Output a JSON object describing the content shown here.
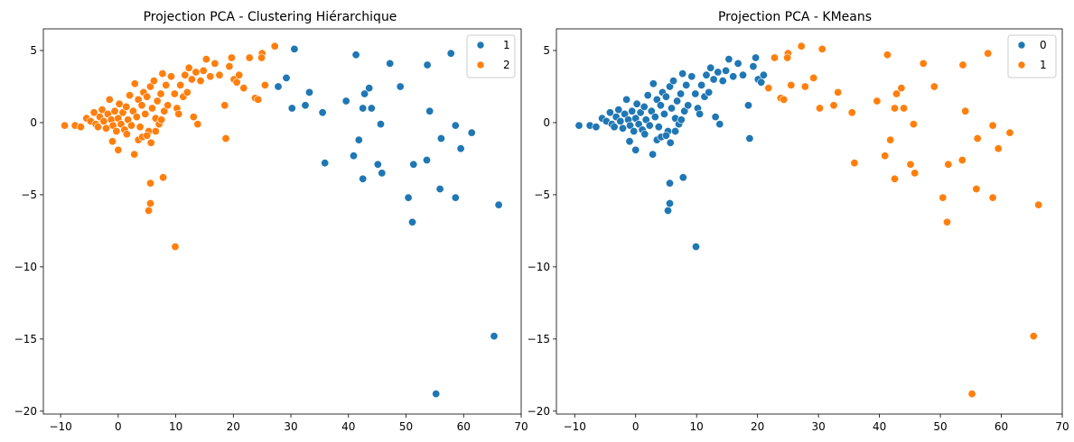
{
  "colors": {
    "blue": "#1f77b4",
    "orange": "#ff7f0e"
  },
  "chart_data": [
    {
      "type": "scatter",
      "title": "Projection PCA - Clustering Hiérarchique",
      "xlabel": "",
      "ylabel": "",
      "xlim": [
        -13,
        70
      ],
      "ylim": [
        -20.2,
        6.5
      ],
      "xticks": [
        -10,
        0,
        10,
        20,
        30,
        40,
        50,
        60,
        70
      ],
      "yticks": [
        5,
        0,
        -5,
        -10,
        -15,
        -20
      ],
      "grid": false,
      "legend": {
        "position": "top-right",
        "entries": [
          "1",
          "2"
        ]
      },
      "series": [
        {
          "name": "1",
          "color": "#1f77b4",
          "points": [
            [
              30.6,
              5.1
            ],
            [
              41.3,
              4.7
            ],
            [
              57.8,
              4.8
            ],
            [
              53.7,
              4.0
            ],
            [
              47.2,
              4.1
            ],
            [
              29.2,
              3.1
            ],
            [
              27.8,
              2.5
            ],
            [
              33.2,
              2.1
            ],
            [
              43.6,
              2.4
            ],
            [
              42.8,
              2.0
            ],
            [
              49.0,
              2.5
            ],
            [
              39.6,
              1.5
            ],
            [
              32.5,
              1.2
            ],
            [
              30.2,
              1.0
            ],
            [
              42.5,
              1.0
            ],
            [
              44.0,
              1.0
            ],
            [
              35.5,
              0.7
            ],
            [
              54.1,
              0.8
            ],
            [
              45.6,
              -0.1
            ],
            [
              58.6,
              -0.2
            ],
            [
              61.4,
              -0.7
            ],
            [
              56.1,
              -1.1
            ],
            [
              59.5,
              -1.8
            ],
            [
              41.8,
              -1.2
            ],
            [
              40.9,
              -2.3
            ],
            [
              53.6,
              -2.6
            ],
            [
              51.3,
              -2.9
            ],
            [
              35.9,
              -2.8
            ],
            [
              45.1,
              -2.9
            ],
            [
              45.8,
              -3.5
            ],
            [
              42.5,
              -3.9
            ],
            [
              55.9,
              -4.6
            ],
            [
              50.4,
              -5.2
            ],
            [
              58.6,
              -5.2
            ],
            [
              66.1,
              -5.7
            ],
            [
              51.1,
              -6.9
            ],
            [
              65.3,
              -14.8
            ],
            [
              55.2,
              -18.8
            ]
          ]
        },
        {
          "name": "2",
          "color": "#ff7f0e",
          "points": [
            [
              -9.3,
              -0.2
            ],
            [
              -7.5,
              -0.2
            ],
            [
              -6.5,
              -0.3
            ],
            [
              -5.5,
              0.3
            ],
            [
              -4.8,
              0.1
            ],
            [
              -4.2,
              0.7
            ],
            [
              -3.9,
              -0.1
            ],
            [
              -3.5,
              -0.3
            ],
            [
              -3.2,
              0.4
            ],
            [
              -2.8,
              0.9
            ],
            [
              -2.5,
              0.1
            ],
            [
              -2.1,
              -0.4
            ],
            [
              -1.8,
              0.6
            ],
            [
              -1.5,
              1.6
            ],
            [
              -1.2,
              0.2
            ],
            [
              -0.9,
              -0.2
            ],
            [
              -0.6,
              0.8
            ],
            [
              -0.3,
              -0.6
            ],
            [
              0.0,
              0.3
            ],
            [
              0.2,
              1.3
            ],
            [
              0.5,
              -0.1
            ],
            [
              0.8,
              0.7
            ],
            [
              1.1,
              -0.5
            ],
            [
              1.4,
              1.1
            ],
            [
              1.7,
              0.2
            ],
            [
              2.0,
              1.9
            ],
            [
              2.3,
              -0.2
            ],
            [
              2.6,
              0.8
            ],
            [
              2.9,
              2.7
            ],
            [
              3.2,
              0.4
            ],
            [
              3.5,
              1.6
            ],
            [
              3.8,
              -0.3
            ],
            [
              4.1,
              1.2
            ],
            [
              4.4,
              2.1
            ],
            [
              4.7,
              0.6
            ],
            [
              5.0,
              1.8
            ],
            [
              5.3,
              -0.6
            ],
            [
              5.6,
              2.5
            ],
            [
              5.9,
              1.0
            ],
            [
              6.2,
              2.9
            ],
            [
              6.5,
              0.3
            ],
            [
              6.8,
              1.5
            ],
            [
              7.1,
              -0.1
            ],
            [
              7.4,
              2.0
            ],
            [
              7.7,
              3.4
            ],
            [
              8.0,
              0.8
            ],
            [
              8.3,
              2.6
            ],
            [
              8.6,
              1.2
            ],
            [
              -1.0,
              -1.3
            ],
            [
              0.0,
              -1.9
            ],
            [
              1.5,
              -0.8
            ],
            [
              2.8,
              -2.2
            ],
            [
              3.5,
              -1.2
            ],
            [
              4.2,
              -1.0
            ],
            [
              5.0,
              -0.9
            ],
            [
              5.7,
              -1.4
            ],
            [
              6.5,
              -0.6
            ],
            [
              7.5,
              0.2
            ],
            [
              9.2,
              3.2
            ],
            [
              9.8,
              2.0
            ],
            [
              10.2,
              1.0
            ],
            [
              10.5,
              0.6
            ],
            [
              10.8,
              2.6
            ],
            [
              11.3,
              1.8
            ],
            [
              11.6,
              3.3
            ],
            [
              12.0,
              2.1
            ],
            [
              12.3,
              3.8
            ],
            [
              12.8,
              3.0
            ],
            [
              13.1,
              0.4
            ],
            [
              13.5,
              3.5
            ],
            [
              13.8,
              -0.1
            ],
            [
              14.3,
              2.9
            ],
            [
              14.8,
              3.6
            ],
            [
              15.3,
              4.4
            ],
            [
              16.0,
              3.2
            ],
            [
              16.8,
              4.1
            ],
            [
              17.6,
              3.3
            ],
            [
              18.5,
              1.2
            ],
            [
              18.7,
              -1.1
            ],
            [
              19.3,
              3.9
            ],
            [
              19.7,
              4.5
            ],
            [
              20.1,
              3.0
            ],
            [
              20.6,
              2.8
            ],
            [
              21.0,
              3.3
            ],
            [
              21.8,
              2.4
            ],
            [
              22.8,
              4.5
            ],
            [
              23.8,
              1.7
            ],
            [
              24.3,
              1.6
            ],
            [
              25.0,
              4.8
            ],
            [
              25.5,
              2.6
            ],
            [
              27.2,
              5.3
            ],
            [
              24.9,
              4.5
            ],
            [
              5.6,
              -4.2
            ],
            [
              7.8,
              -3.8
            ],
            [
              5.6,
              -5.6
            ],
            [
              5.3,
              -6.1
            ],
            [
              9.9,
              -8.6
            ]
          ]
        }
      ]
    },
    {
      "type": "scatter",
      "title": "Projection PCA - KMeans",
      "xlabel": "",
      "ylabel": "",
      "xlim": [
        -13,
        70
      ],
      "ylim": [
        -20.2,
        6.5
      ],
      "xticks": [
        -10,
        0,
        10,
        20,
        30,
        40,
        50,
        60,
        70
      ],
      "yticks": [
        5,
        0,
        -5,
        -10,
        -15,
        -20
      ],
      "grid": false,
      "legend": {
        "position": "top-right",
        "entries": [
          "0",
          "1"
        ]
      },
      "series": [
        {
          "name": "0",
          "color": "#1f77b4",
          "points": [
            [
              -9.3,
              -0.2
            ],
            [
              -7.5,
              -0.2
            ],
            [
              -6.5,
              -0.3
            ],
            [
              -5.5,
              0.3
            ],
            [
              -4.8,
              0.1
            ],
            [
              -4.2,
              0.7
            ],
            [
              -3.9,
              -0.1
            ],
            [
              -3.5,
              -0.3
            ],
            [
              -3.2,
              0.4
            ],
            [
              -2.8,
              0.9
            ],
            [
              -2.5,
              0.1
            ],
            [
              -2.1,
              -0.4
            ],
            [
              -1.8,
              0.6
            ],
            [
              -1.5,
              1.6
            ],
            [
              -1.2,
              0.2
            ],
            [
              -0.9,
              -0.2
            ],
            [
              -0.6,
              0.8
            ],
            [
              -0.3,
              -0.6
            ],
            [
              0.0,
              0.3
            ],
            [
              0.2,
              1.3
            ],
            [
              0.5,
              -0.1
            ],
            [
              0.8,
              0.7
            ],
            [
              1.1,
              -0.5
            ],
            [
              1.4,
              1.1
            ],
            [
              1.7,
              0.2
            ],
            [
              2.0,
              1.9
            ],
            [
              2.3,
              -0.2
            ],
            [
              2.6,
              0.8
            ],
            [
              2.9,
              2.7
            ],
            [
              3.2,
              0.4
            ],
            [
              3.5,
              1.6
            ],
            [
              3.8,
              -0.3
            ],
            [
              4.1,
              1.2
            ],
            [
              4.4,
              2.1
            ],
            [
              4.7,
              0.6
            ],
            [
              5.0,
              1.8
            ],
            [
              5.3,
              -0.6
            ],
            [
              5.6,
              2.5
            ],
            [
              5.9,
              1.0
            ],
            [
              6.2,
              2.9
            ],
            [
              6.5,
              0.3
            ],
            [
              6.8,
              1.5
            ],
            [
              7.1,
              -0.1
            ],
            [
              7.4,
              2.0
            ],
            [
              7.7,
              3.4
            ],
            [
              8.0,
              0.8
            ],
            [
              8.3,
              2.6
            ],
            [
              8.6,
              1.2
            ],
            [
              -1.0,
              -1.3
            ],
            [
              0.0,
              -1.9
            ],
            [
              1.5,
              -0.8
            ],
            [
              2.8,
              -2.2
            ],
            [
              3.5,
              -1.2
            ],
            [
              4.2,
              -1.0
            ],
            [
              5.0,
              -0.9
            ],
            [
              5.7,
              -1.4
            ],
            [
              6.5,
              -0.6
            ],
            [
              7.5,
              0.2
            ],
            [
              9.2,
              3.2
            ],
            [
              9.8,
              2.0
            ],
            [
              10.2,
              1.0
            ],
            [
              10.5,
              0.6
            ],
            [
              10.8,
              2.6
            ],
            [
              11.3,
              1.8
            ],
            [
              11.6,
              3.3
            ],
            [
              12.0,
              2.1
            ],
            [
              12.3,
              3.8
            ],
            [
              12.8,
              3.0
            ],
            [
              13.1,
              0.4
            ],
            [
              13.5,
              3.5
            ],
            [
              13.8,
              -0.1
            ],
            [
              14.3,
              2.9
            ],
            [
              14.8,
              3.6
            ],
            [
              15.3,
              4.4
            ],
            [
              16.0,
              3.2
            ],
            [
              16.8,
              4.1
            ],
            [
              17.6,
              3.3
            ],
            [
              18.5,
              1.2
            ],
            [
              18.7,
              -1.1
            ],
            [
              19.3,
              3.9
            ],
            [
              19.7,
              4.5
            ],
            [
              20.1,
              3.0
            ],
            [
              20.6,
              2.8
            ],
            [
              21.0,
              3.3
            ],
            [
              5.6,
              -4.2
            ],
            [
              7.8,
              -3.8
            ],
            [
              5.6,
              -5.6
            ],
            [
              5.3,
              -6.1
            ],
            [
              9.9,
              -8.6
            ]
          ]
        },
        {
          "name": "1",
          "color": "#ff7f0e",
          "points": [
            [
              21.8,
              2.4
            ],
            [
              22.8,
              4.5
            ],
            [
              23.8,
              1.7
            ],
            [
              24.3,
              1.6
            ],
            [
              25.0,
              4.8
            ],
            [
              25.5,
              2.6
            ],
            [
              27.2,
              5.3
            ],
            [
              24.9,
              4.5
            ],
            [
              30.6,
              5.1
            ],
            [
              41.3,
              4.7
            ],
            [
              57.8,
              4.8
            ],
            [
              53.7,
              4.0
            ],
            [
              47.2,
              4.1
            ],
            [
              29.2,
              3.1
            ],
            [
              27.8,
              2.5
            ],
            [
              33.2,
              2.1
            ],
            [
              43.6,
              2.4
            ],
            [
              42.8,
              2.0
            ],
            [
              49.0,
              2.5
            ],
            [
              39.6,
              1.5
            ],
            [
              32.5,
              1.2
            ],
            [
              30.2,
              1.0
            ],
            [
              42.5,
              1.0
            ],
            [
              44.0,
              1.0
            ],
            [
              35.5,
              0.7
            ],
            [
              54.1,
              0.8
            ],
            [
              45.6,
              -0.1
            ],
            [
              58.6,
              -0.2
            ],
            [
              61.4,
              -0.7
            ],
            [
              56.1,
              -1.1
            ],
            [
              59.5,
              -1.8
            ],
            [
              41.8,
              -1.2
            ],
            [
              40.9,
              -2.3
            ],
            [
              53.6,
              -2.6
            ],
            [
              51.3,
              -2.9
            ],
            [
              35.9,
              -2.8
            ],
            [
              45.1,
              -2.9
            ],
            [
              45.8,
              -3.5
            ],
            [
              42.5,
              -3.9
            ],
            [
              55.9,
              -4.6
            ],
            [
              50.4,
              -5.2
            ],
            [
              58.6,
              -5.2
            ],
            [
              66.1,
              -5.7
            ],
            [
              51.1,
              -6.9
            ],
            [
              65.3,
              -14.8
            ],
            [
              55.2,
              -18.8
            ]
          ]
        }
      ]
    }
  ]
}
